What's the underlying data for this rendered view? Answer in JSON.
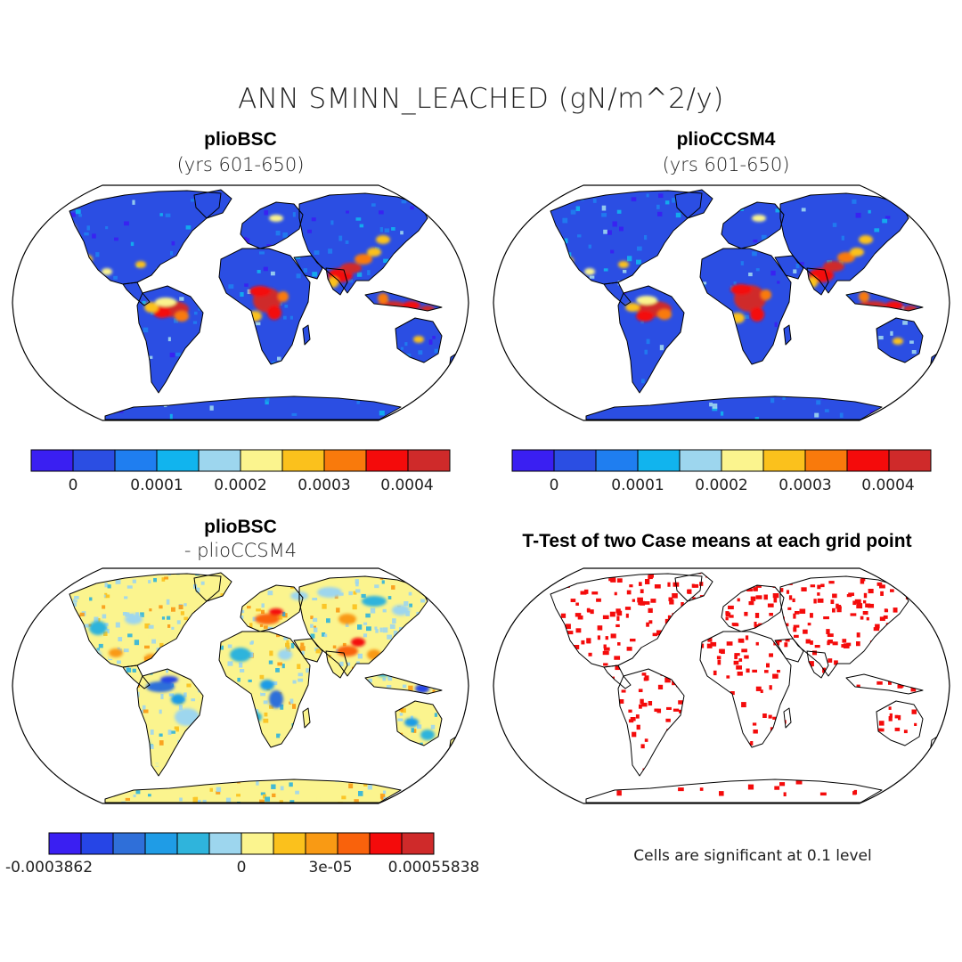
{
  "figure": {
    "title": "ANN SMINN_LEACHED (gN/m^2/y)"
  },
  "panels": [
    {
      "id": "top-left",
      "title": "plioBSC",
      "subtitle": "(yrs 601-650)",
      "colorbar": {
        "colors": [
          "#3a1ff2",
          "#2b4ee3",
          "#1f7ef0",
          "#11b4ee",
          "#9dd6ee",
          "#fbf48e",
          "#fbc11c",
          "#f97a0c",
          "#f40b0b",
          "#cf2a2a"
        ],
        "labels": [
          "0",
          "0.0001",
          "0.0002",
          "0.0003",
          "0.0004"
        ]
      }
    },
    {
      "id": "top-right",
      "title": "plioCCSM4",
      "subtitle": "(yrs 601-650)",
      "colorbar": {
        "colors": [
          "#3a1ff2",
          "#2b4ee3",
          "#1f7ef0",
          "#11b4ee",
          "#9dd6ee",
          "#fbf48e",
          "#fbc11c",
          "#f97a0c",
          "#f40b0b",
          "#cf2a2a"
        ],
        "labels": [
          "0",
          "0.0001",
          "0.0002",
          "0.0003",
          "0.0004"
        ]
      }
    },
    {
      "id": "bottom-left",
      "title": "plioBSC",
      "subtitle": "- plioCCSM4",
      "colorbar": {
        "colors": [
          "#3a1ff2",
          "#2645e6",
          "#2f6fd9",
          "#1f9ce6",
          "#2fb4dc",
          "#9dd6ee",
          "#fbf48e",
          "#fbc11c",
          "#f99a14",
          "#f9620c",
          "#f40b0b",
          "#cf2a2a"
        ],
        "labels": [
          "-0.0003862",
          "0",
          "3e-05",
          "0.00055838"
        ]
      }
    },
    {
      "id": "bottom-right",
      "title": "T-Test of two Case means at each grid point",
      "note": "Cells are significant at 0.1 level",
      "signif_color": "#f40b0b"
    }
  ],
  "colors": {
    "land_base": "#2b4ee3",
    "diff_base": "#fbf48e",
    "outline": "#000000"
  }
}
